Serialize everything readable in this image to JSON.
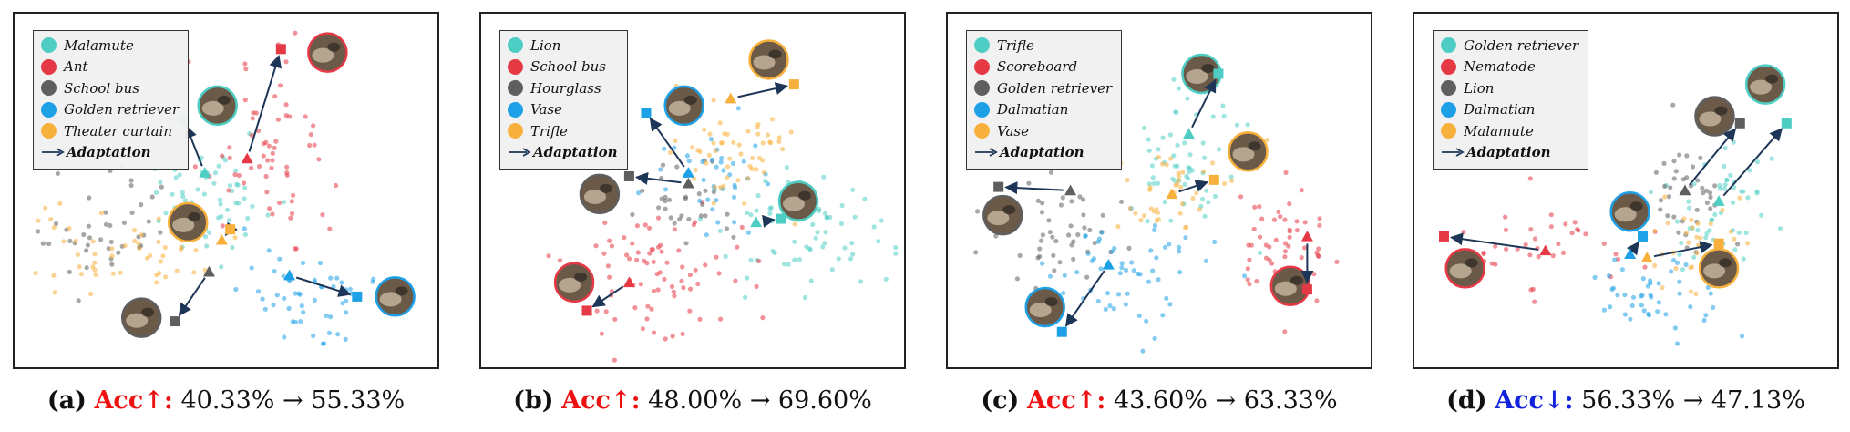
{
  "colors": {
    "c0": "#4ecdc4",
    "c1": "#e63946",
    "c2": "#5f5f5f",
    "c3": "#1ea0e6",
    "c4": "#f8b03c",
    "arrow": "#1d3557",
    "acc_up": "#ee1111",
    "acc_down": "#1122dd"
  },
  "chart_data": [
    {
      "type": "scatter",
      "caption": {
        "label": "(a)",
        "acc": "Acc↑:",
        "direction": "up",
        "values": "40.33% → 55.33%"
      },
      "legend": [
        "Malamute",
        "Ant",
        "School bus",
        "Golden retriever",
        "Theater curtain"
      ],
      "arrow_label": "Adaptation",
      "clusters": [
        {
          "class": 0,
          "cx": 0.45,
          "cy": 0.52,
          "sx": 0.08,
          "sy": 0.08,
          "n": 60
        },
        {
          "class": 1,
          "cx": 0.62,
          "cy": 0.4,
          "sx": 0.08,
          "sy": 0.13,
          "n": 65
        },
        {
          "class": 2,
          "cx": 0.2,
          "cy": 0.62,
          "sx": 0.09,
          "sy": 0.07,
          "n": 45
        },
        {
          "class": 3,
          "cx": 0.7,
          "cy": 0.78,
          "sx": 0.08,
          "sy": 0.06,
          "n": 55
        },
        {
          "class": 4,
          "cx": 0.26,
          "cy": 0.66,
          "sx": 0.12,
          "sy": 0.06,
          "n": 55
        }
      ],
      "adaptations": [
        {
          "class": 0,
          "from": [
            0.45,
            0.45
          ],
          "to": [
            0.4,
            0.3
          ],
          "img": [
            0.48,
            0.26
          ]
        },
        {
          "class": 1,
          "from": [
            0.55,
            0.41
          ],
          "to": [
            0.63,
            0.1
          ],
          "img": [
            0.74,
            0.11
          ]
        },
        {
          "class": 2,
          "from": [
            0.46,
            0.73
          ],
          "to": [
            0.38,
            0.87
          ],
          "img": [
            0.3,
            0.86
          ]
        },
        {
          "class": 3,
          "from": [
            0.65,
            0.74
          ],
          "to": [
            0.81,
            0.8
          ],
          "img": [
            0.9,
            0.8
          ]
        },
        {
          "class": 4,
          "from": [
            0.49,
            0.64
          ],
          "to": [
            0.51,
            0.61
          ],
          "img": [
            0.41,
            0.59
          ]
        }
      ]
    },
    {
      "type": "scatter",
      "caption": {
        "label": "(b)",
        "acc": "Acc↑:",
        "direction": "up",
        "values": "48.00% → 69.60%"
      },
      "legend": [
        "Lion",
        "School bus",
        "Hourglass",
        "Vase",
        "Trifle"
      ],
      "arrow_label": "Adaptation",
      "clusters": [
        {
          "class": 0,
          "cx": 0.78,
          "cy": 0.62,
          "sx": 0.09,
          "sy": 0.08,
          "n": 70
        },
        {
          "class": 1,
          "cx": 0.42,
          "cy": 0.74,
          "sx": 0.1,
          "sy": 0.09,
          "n": 80
        },
        {
          "class": 2,
          "cx": 0.48,
          "cy": 0.53,
          "sx": 0.06,
          "sy": 0.07,
          "n": 30
        },
        {
          "class": 3,
          "cx": 0.55,
          "cy": 0.48,
          "sx": 0.07,
          "sy": 0.07,
          "n": 40
        },
        {
          "class": 4,
          "cx": 0.58,
          "cy": 0.4,
          "sx": 0.08,
          "sy": 0.08,
          "n": 55
        }
      ],
      "adaptations": [
        {
          "class": 0,
          "from": [
            0.65,
            0.59
          ],
          "to": [
            0.71,
            0.58
          ],
          "img": [
            0.75,
            0.53
          ]
        },
        {
          "class": 1,
          "from": [
            0.35,
            0.76
          ],
          "to": [
            0.25,
            0.84
          ],
          "img": [
            0.22,
            0.76
          ]
        },
        {
          "class": 2,
          "from": [
            0.49,
            0.48
          ],
          "to": [
            0.35,
            0.46
          ],
          "img": [
            0.28,
            0.51
          ]
        },
        {
          "class": 3,
          "from": [
            0.49,
            0.45
          ],
          "to": [
            0.39,
            0.28
          ],
          "img": [
            0.48,
            0.26
          ]
        },
        {
          "class": 4,
          "from": [
            0.59,
            0.24
          ],
          "to": [
            0.74,
            0.2
          ],
          "img": [
            0.68,
            0.13
          ]
        }
      ]
    },
    {
      "type": "scatter",
      "caption": {
        "label": "(c)",
        "acc": "Acc↑:",
        "direction": "up",
        "values": "43.60% → 63.33%"
      },
      "legend": [
        "Trifle",
        "Scoreboard",
        "Golden retriever",
        "Dalmatian",
        "Vase"
      ],
      "arrow_label": "Adaptation",
      "clusters": [
        {
          "class": 0,
          "cx": 0.57,
          "cy": 0.42,
          "sx": 0.07,
          "sy": 0.11,
          "n": 60
        },
        {
          "class": 1,
          "cx": 0.8,
          "cy": 0.66,
          "sx": 0.07,
          "sy": 0.08,
          "n": 55
        },
        {
          "class": 2,
          "cx": 0.24,
          "cy": 0.62,
          "sx": 0.08,
          "sy": 0.09,
          "n": 50
        },
        {
          "class": 3,
          "cx": 0.42,
          "cy": 0.74,
          "sx": 0.1,
          "sy": 0.08,
          "n": 60
        },
        {
          "class": 4,
          "cx": 0.53,
          "cy": 0.5,
          "sx": 0.07,
          "sy": 0.06,
          "n": 40
        }
      ],
      "adaptations": [
        {
          "class": 0,
          "from": [
            0.57,
            0.34
          ],
          "to": [
            0.64,
            0.17
          ],
          "img": [
            0.6,
            0.17
          ]
        },
        {
          "class": 1,
          "from": [
            0.85,
            0.63
          ],
          "to": [
            0.85,
            0.78
          ],
          "img": [
            0.81,
            0.77
          ]
        },
        {
          "class": 2,
          "from": [
            0.29,
            0.5
          ],
          "to": [
            0.12,
            0.49
          ],
          "img": [
            0.13,
            0.57
          ]
        },
        {
          "class": 3,
          "from": [
            0.38,
            0.71
          ],
          "to": [
            0.27,
            0.9
          ],
          "img": [
            0.23,
            0.83
          ]
        },
        {
          "class": 4,
          "from": [
            0.53,
            0.51
          ],
          "to": [
            0.63,
            0.47
          ],
          "img": [
            0.71,
            0.39
          ]
        }
      ]
    },
    {
      "type": "scatter",
      "caption": {
        "label": "(d)",
        "acc": "Acc↓:",
        "direction": "down",
        "values": "56.33% → 47.13%"
      },
      "legend": [
        "Golden retriever",
        "Nematode",
        "Lion",
        "Dalmatian",
        "Malamute"
      ],
      "arrow_label": "Adaptation",
      "clusters": [
        {
          "class": 0,
          "cx": 0.72,
          "cy": 0.55,
          "sx": 0.06,
          "sy": 0.1,
          "n": 55
        },
        {
          "class": 1,
          "cx": 0.3,
          "cy": 0.66,
          "sx": 0.1,
          "sy": 0.08,
          "n": 45
        },
        {
          "class": 2,
          "cx": 0.64,
          "cy": 0.5,
          "sx": 0.05,
          "sy": 0.09,
          "n": 40
        },
        {
          "class": 3,
          "cx": 0.57,
          "cy": 0.8,
          "sx": 0.07,
          "sy": 0.06,
          "n": 45
        },
        {
          "class": 4,
          "cx": 0.68,
          "cy": 0.66,
          "sx": 0.06,
          "sy": 0.07,
          "n": 35
        }
      ],
      "adaptations": [
        {
          "class": 0,
          "from": [
            0.72,
            0.53
          ],
          "to": [
            0.88,
            0.31
          ],
          "img": [
            0.83,
            0.2
          ]
        },
        {
          "class": 1,
          "from": [
            0.31,
            0.67
          ],
          "to": [
            0.07,
            0.63
          ],
          "img": [
            0.12,
            0.72
          ]
        },
        {
          "class": 2,
          "from": [
            0.64,
            0.5
          ],
          "to": [
            0.77,
            0.31
          ],
          "img": [
            0.71,
            0.29
          ]
        },
        {
          "class": 3,
          "from": [
            0.51,
            0.68
          ],
          "to": [
            0.54,
            0.63
          ],
          "img": [
            0.51,
            0.56
          ]
        },
        {
          "class": 4,
          "from": [
            0.55,
            0.69
          ],
          "to": [
            0.72,
            0.65
          ],
          "img": [
            0.72,
            0.72
          ]
        }
      ]
    }
  ]
}
